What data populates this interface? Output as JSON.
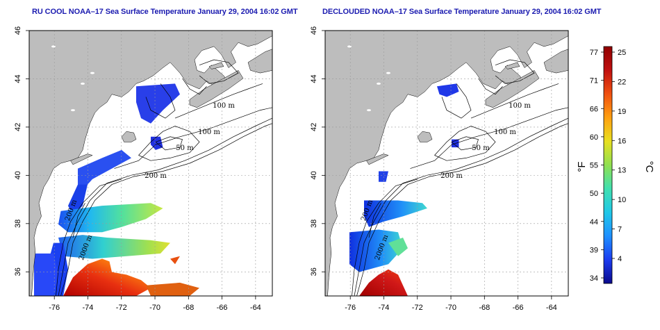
{
  "panels": [
    {
      "title": "RU COOL NOAA–17 Sea Surface Temperature January 29, 2004 16:02 GMT",
      "kind": "raw"
    },
    {
      "title": "DECLOUDED NOAA–17 Sea Surface Temperature January 29, 2004 16:02 GMT",
      "kind": "declouded"
    }
  ],
  "axes": {
    "lon_ticks": [
      "-76",
      "-74",
      "-72",
      "-70",
      "-68",
      "-66",
      "-64"
    ],
    "lat_ticks": [
      "36",
      "38",
      "40",
      "42",
      "44",
      "46"
    ],
    "lon_range": [
      -77.5,
      -63
    ],
    "lat_range": [
      35,
      46
    ]
  },
  "contour_labels": [
    "100 m",
    "100 m",
    "50 m",
    "200 m",
    "2000 m",
    "200 m"
  ],
  "colorbar": {
    "fahrenheit_ticks": [
      "77",
      "71",
      "66",
      "60",
      "55",
      "50",
      "44",
      "39",
      "34"
    ],
    "celsius_ticks": [
      "25",
      "22",
      "19",
      "16",
      "13",
      "10",
      "7",
      "4"
    ],
    "fahrenheit_label": "°F",
    "celsius_label": "°C",
    "colors": [
      "#0a0a8c",
      "#1c3cf0",
      "#1e90ff",
      "#20c8e8",
      "#40e0b0",
      "#90e050",
      "#e8e020",
      "#ffa010",
      "#f05010",
      "#c01010",
      "#900000"
    ]
  },
  "colors": {
    "land": "#bdbdbd",
    "ocean": "#ffffff",
    "grid": "#9a9a9a",
    "title": "#1b1bb0"
  }
}
